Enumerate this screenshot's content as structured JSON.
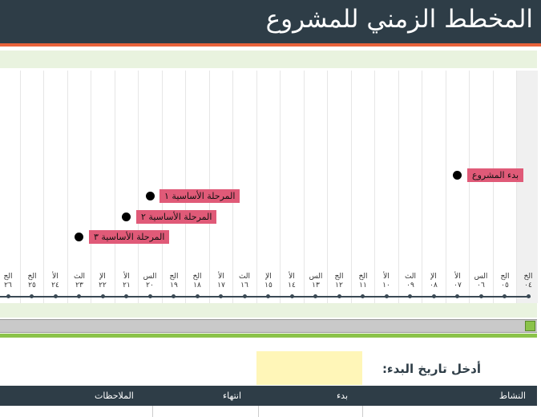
{
  "title": "المخطط الزمني للمشروع",
  "days": [
    {
      "abbr": "الخ",
      "num": "٠٤"
    },
    {
      "abbr": "الج",
      "num": "٠٥"
    },
    {
      "abbr": "الس",
      "num": "٠٦"
    },
    {
      "abbr": "الأ",
      "num": "٠٧"
    },
    {
      "abbr": "الإ",
      "num": "٠٨"
    },
    {
      "abbr": "الث",
      "num": "٠٩"
    },
    {
      "abbr": "الأ",
      "num": "١٠"
    },
    {
      "abbr": "الخ",
      "num": "١١"
    },
    {
      "abbr": "الج",
      "num": "١٢"
    },
    {
      "abbr": "الس",
      "num": "١٣"
    },
    {
      "abbr": "الأ",
      "num": "١٤"
    },
    {
      "abbr": "الإ",
      "num": "١٥"
    },
    {
      "abbr": "الث",
      "num": "١٦"
    },
    {
      "abbr": "الأ",
      "num": "١٧"
    },
    {
      "abbr": "الخ",
      "num": "١٨"
    },
    {
      "abbr": "الج",
      "num": "١٩"
    },
    {
      "abbr": "الس",
      "num": "٢٠"
    },
    {
      "abbr": "الأ",
      "num": "٢١"
    },
    {
      "abbr": "الإ",
      "num": "٢٢"
    },
    {
      "abbr": "الث",
      "num": "٢٣"
    },
    {
      "abbr": "الأ",
      "num": "٢٤"
    },
    {
      "abbr": "الخ",
      "num": "٢٥"
    },
    {
      "abbr": "الج",
      "num": "٢٦"
    }
  ],
  "milestones": [
    {
      "label": "بدء المشروع",
      "day": "٠٧"
    },
    {
      "label": "المرحلة الأساسية ١",
      "day": "٢٠"
    },
    {
      "label": "المرحلة الأساسية ٢",
      "day": "٢١"
    },
    {
      "label": "المرحلة الأساسية ٣",
      "day": "٢٣"
    }
  ],
  "start_date": {
    "label": "أدخل تاريخ البدء:",
    "value": ""
  },
  "table": {
    "headers": {
      "activity": "النشاط",
      "start": "بدء",
      "end": "انتهاء",
      "notes": "الملاحظات"
    }
  },
  "colors": {
    "header": "#2e3d47",
    "accent": "#e8623a",
    "milestone": "#e05a78",
    "scroll_thumb": "#8bc34a",
    "input": "#fff6b8"
  }
}
